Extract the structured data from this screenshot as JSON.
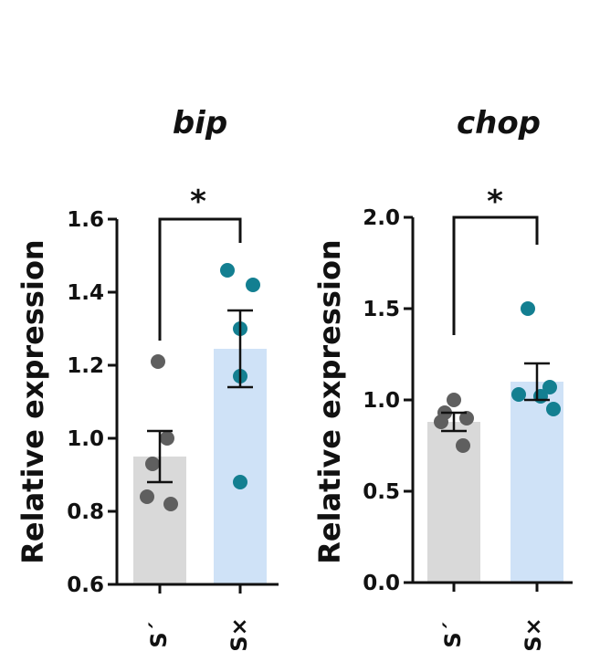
{
  "chart_data": [
    {
      "type": "bar",
      "title": "bip",
      "ylabel": "Relative expression",
      "xlabel": "",
      "ylim": [
        0.6,
        1.6
      ],
      "yticks": [
        "0.6",
        "0.8",
        "1.0",
        "1.2",
        "1.4",
        "1.6"
      ],
      "categories": [
        "S´",
        "S×"
      ],
      "values": [
        0.95,
        1.245
      ],
      "error": [
        0.07,
        0.105
      ],
      "points": [
        [
          1.21,
          1.0,
          0.93,
          0.84,
          0.82
        ],
        [
          1.46,
          1.42,
          1.3,
          1.17,
          0.88
        ]
      ],
      "bar_colors": [
        "#d9d9d9",
        "#cfe2f7"
      ],
      "point_colors": [
        "#5f5f5f",
        "#137f91"
      ],
      "significance": "*"
    },
    {
      "type": "bar",
      "title": "chop",
      "ylabel": "Relative expression",
      "xlabel": "",
      "ylim": [
        0.0,
        2.0
      ],
      "yticks": [
        "0.0",
        "0.5",
        "1.0",
        "1.5",
        "2.0"
      ],
      "categories": [
        "S´",
        "S×"
      ],
      "values": [
        0.88,
        1.1
      ],
      "error": [
        0.05,
        0.1
      ],
      "points": [
        [
          1.0,
          0.93,
          0.9,
          0.88,
          0.75
        ],
        [
          1.5,
          1.07,
          1.03,
          1.02,
          0.95
        ]
      ],
      "bar_colors": [
        "#d9d9d9",
        "#cfe2f7"
      ],
      "point_colors": [
        "#5f5f5f",
        "#137f91"
      ],
      "significance": "*"
    }
  ]
}
